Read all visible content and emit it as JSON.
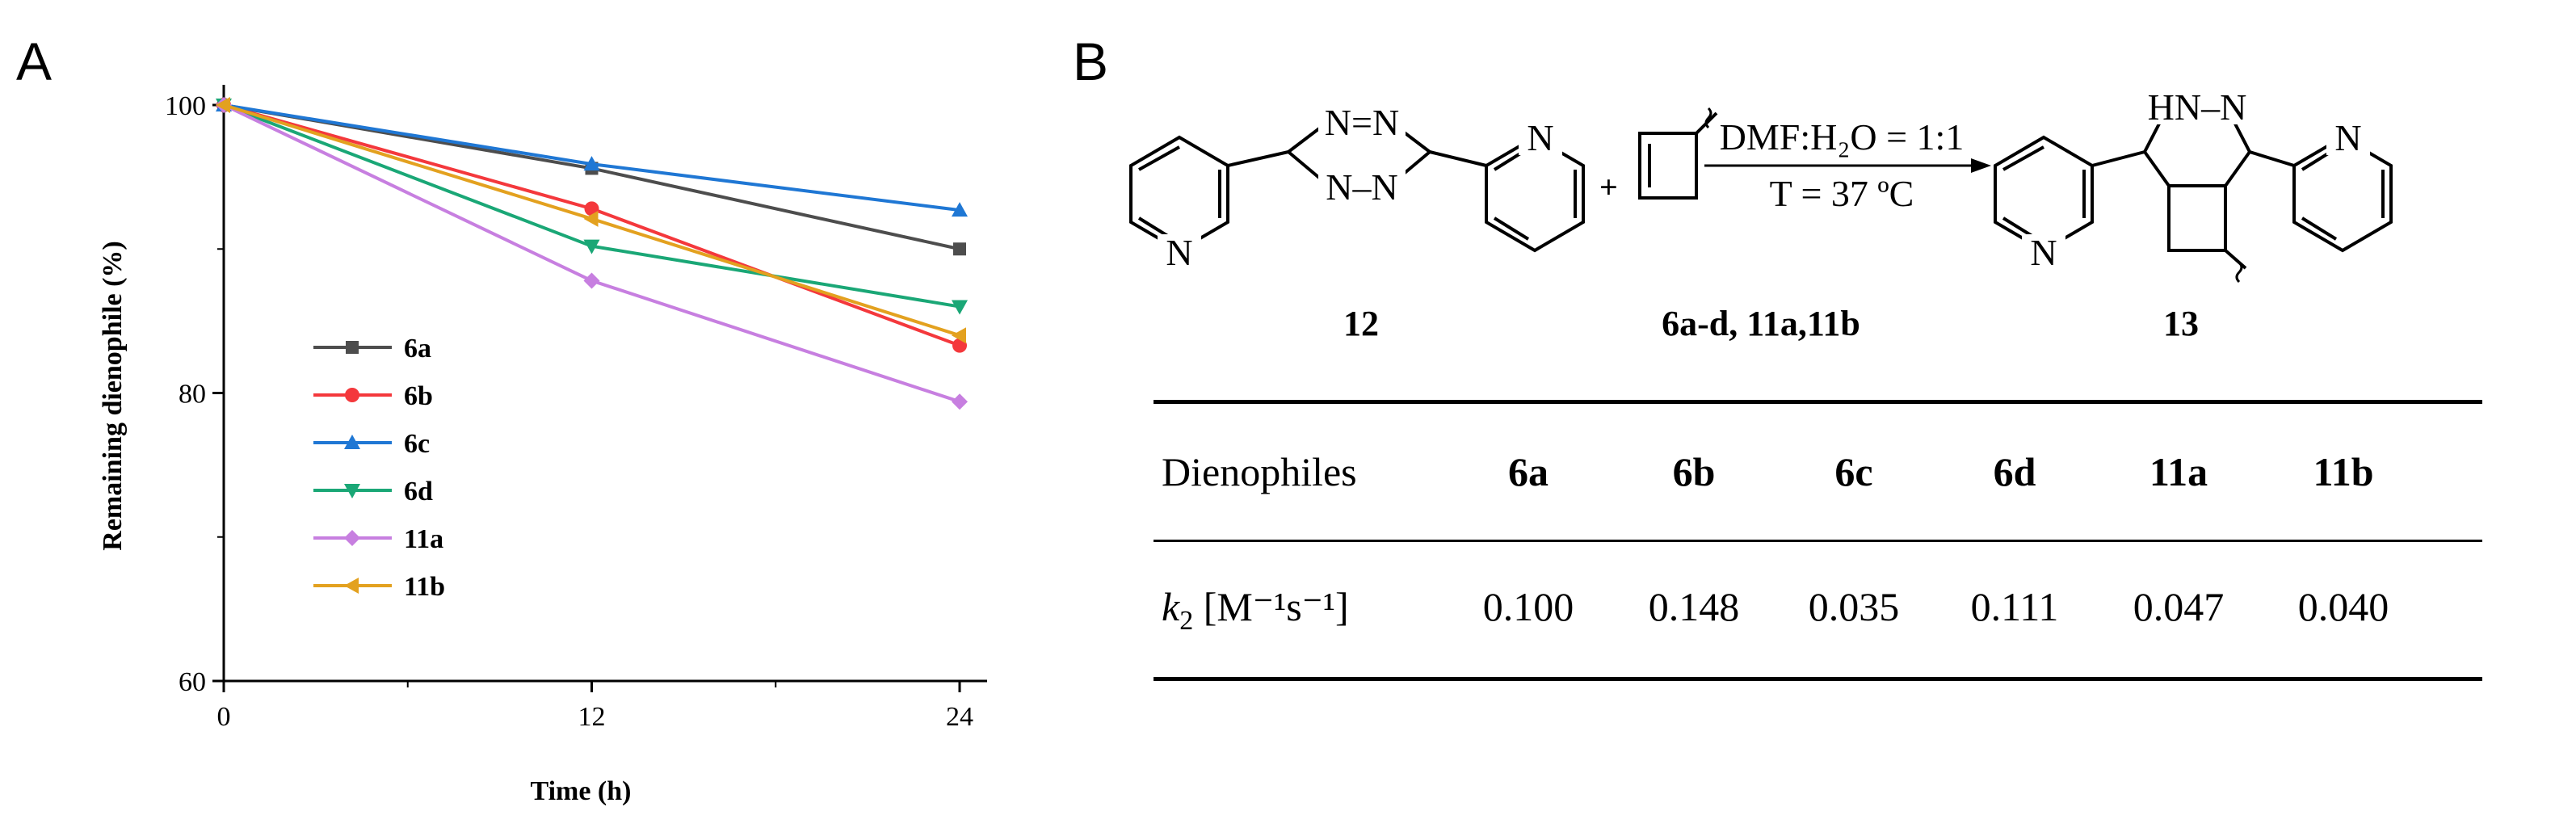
{
  "panels": {
    "a_letter": "A",
    "b_letter": "B"
  },
  "chart_data": {
    "type": "line",
    "title": "",
    "xlabel": "Time (h)",
    "ylabel": "Remaining dienophile (%)",
    "x": [
      0,
      12,
      24
    ],
    "xticks": [
      "0",
      "12",
      "24"
    ],
    "yticks": [
      "60",
      "80",
      "100"
    ],
    "xlim": [
      0,
      24.5
    ],
    "ylim": [
      60,
      101.5
    ],
    "grid": false,
    "legend_position": "left-center",
    "series": [
      {
        "name": "6a",
        "values": [
          100,
          95.6,
          90.0
        ],
        "color": "#4d4d4d",
        "marker": "square"
      },
      {
        "name": "6b",
        "values": [
          100,
          92.8,
          83.3
        ],
        "color": "#f4383c",
        "marker": "circle"
      },
      {
        "name": "6c",
        "values": [
          100,
          95.9,
          92.7
        ],
        "color": "#1f77d4",
        "marker": "triangle-up"
      },
      {
        "name": "6d",
        "values": [
          100,
          90.2,
          86.0
        ],
        "color": "#1aa776",
        "marker": "triangle-down"
      },
      {
        "name": "11a",
        "values": [
          100,
          87.8,
          79.4
        ],
        "color": "#c77fe0",
        "marker": "diamond"
      },
      {
        "name": "11b",
        "values": [
          100,
          92.1,
          84.0
        ],
        "color": "#e3a11f",
        "marker": "triangle-left"
      }
    ]
  },
  "scheme": {
    "reactant_label": "12",
    "dienophile_label": "6a-d, 11a,11b",
    "product_label": "13",
    "plus": "+",
    "conditions_solvent": "DMF:H₂O = 1:1",
    "conditions_temp": "T = 37 ºC",
    "atoms": {
      "n": "N",
      "nn": "N=N",
      "nn2": "N–N",
      "hn_n": "HN–N"
    }
  },
  "table": {
    "header_label": "Dienophiles",
    "columns": [
      "6a",
      "6b",
      "6c",
      "6d",
      "11a",
      "11b"
    ],
    "row_label_k": "k",
    "row_label_sub": "2",
    "row_label_unit": "[M⁻¹s⁻¹]",
    "values": [
      "0.100",
      "0.148",
      "0.035",
      "0.111",
      "0.047",
      "0.040"
    ]
  }
}
